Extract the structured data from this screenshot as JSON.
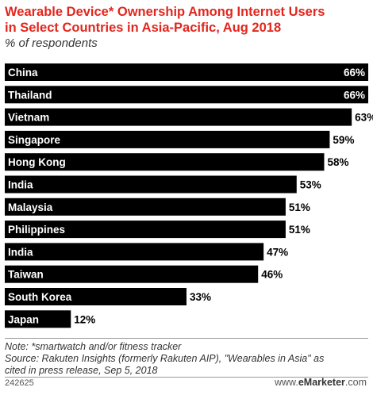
{
  "title_line1": "Wearable Device* Ownership Among Internet Users",
  "title_line2": "in Select Countries in Asia-Pacific, Aug 2018",
  "subtitle": "% of respondents",
  "note": "Note: *smartwatch and/or fitness tracker",
  "source_line1": "Source: Rakuten Insights (formerly Rakuten AIP), \"Wearables in Asia\" as",
  "source_line2": "cited in press release, Sep 5, 2018",
  "chart_id": "242625",
  "brand": {
    "prefix": "www.",
    "e": "e",
    "name": "Marketer",
    "suffix": ".com"
  },
  "colors": {
    "title": "#e2261d",
    "bar": "#000000",
    "bar_label": "#ffffff"
  },
  "chart_data": {
    "type": "bar",
    "orientation": "horizontal",
    "categories": [
      "China",
      "Thailand",
      "Vietnam",
      "Singapore",
      "Hong Kong",
      "India",
      "Malaysia",
      "Philippines",
      "India",
      "Taiwan",
      "South Korea",
      "Japan"
    ],
    "values": [
      66,
      66,
      63,
      59,
      58,
      53,
      51,
      51,
      47,
      46,
      33,
      12
    ],
    "value_suffix": "%",
    "xlim": [
      0,
      66
    ],
    "grid": false,
    "legend": "none"
  }
}
